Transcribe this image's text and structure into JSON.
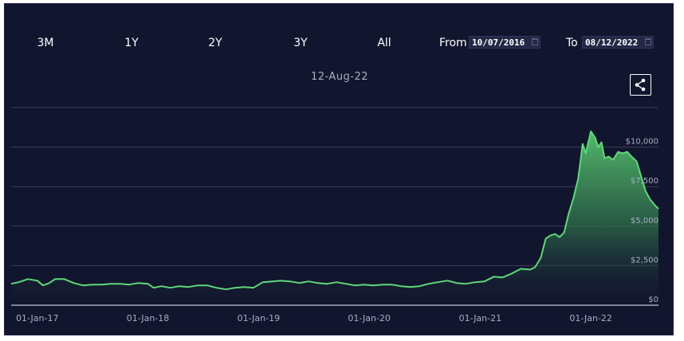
{
  "toolbar": {
    "range_buttons": [
      "3M",
      "1Y",
      "2Y",
      "3Y",
      "All"
    ],
    "from_label": "From",
    "from_value": "10/07/2016",
    "to_label": "To",
    "to_value": "08/12/2022"
  },
  "hover_date": "12-Aug-22",
  "share_icon": "share-icon",
  "colors": {
    "background": "#12152e",
    "line": "#5fd87a",
    "fill_top": "#57c46f",
    "grid": "#3a3f5c",
    "text": "#a8adc4"
  },
  "chart_data": {
    "type": "area",
    "title": "",
    "xlabel": "",
    "ylabel": "",
    "ylim": [
      0,
      12500
    ],
    "y_ticks": [
      {
        "value": 0,
        "label": "$0"
      },
      {
        "value": 2500,
        "label": "$2,500"
      },
      {
        "value": 5000,
        "label": "$5,000"
      },
      {
        "value": 7500,
        "label": "$7,500"
      },
      {
        "value": 10000,
        "label": "$10,000"
      }
    ],
    "x_ticks": [
      {
        "date": "2017-01-01",
        "label": "01-Jan-17"
      },
      {
        "date": "2018-01-01",
        "label": "01-Jan-18"
      },
      {
        "date": "2019-01-01",
        "label": "01-Jan-19"
      },
      {
        "date": "2020-01-01",
        "label": "01-Jan-20"
      },
      {
        "date": "2021-01-01",
        "label": "01-Jan-21"
      },
      {
        "date": "2022-01-01",
        "label": "01-Jan-22"
      }
    ],
    "xlim": [
      "2016-10-07",
      "2022-08-12"
    ],
    "grid": true,
    "legend": "none",
    "series": [
      {
        "points": [
          [
            "2016-10-07",
            1350
          ],
          [
            "2016-11-01",
            1450
          ],
          [
            "2016-12-01",
            1650
          ],
          [
            "2017-01-01",
            1550
          ],
          [
            "2017-01-20",
            1250
          ],
          [
            "2017-02-10",
            1400
          ],
          [
            "2017-03-01",
            1650
          ],
          [
            "2017-04-01",
            1650
          ],
          [
            "2017-05-01",
            1400
          ],
          [
            "2017-06-01",
            1250
          ],
          [
            "2017-07-01",
            1300
          ],
          [
            "2017-08-01",
            1300
          ],
          [
            "2017-09-01",
            1350
          ],
          [
            "2017-10-01",
            1350
          ],
          [
            "2017-11-01",
            1300
          ],
          [
            "2017-12-01",
            1400
          ],
          [
            "2018-01-01",
            1350
          ],
          [
            "2018-01-20",
            1100
          ],
          [
            "2018-02-15",
            1200
          ],
          [
            "2018-03-15",
            1100
          ],
          [
            "2018-04-15",
            1200
          ],
          [
            "2018-05-15",
            1150
          ],
          [
            "2018-06-15",
            1250
          ],
          [
            "2018-07-15",
            1250
          ],
          [
            "2018-08-15",
            1100
          ],
          [
            "2018-09-15",
            1000
          ],
          [
            "2018-10-15",
            1100
          ],
          [
            "2018-11-15",
            1150
          ],
          [
            "2018-12-15",
            1100
          ],
          [
            "2019-01-15",
            1450
          ],
          [
            "2019-02-15",
            1500
          ],
          [
            "2019-03-15",
            1550
          ],
          [
            "2019-04-15",
            1500
          ],
          [
            "2019-05-15",
            1400
          ],
          [
            "2019-06-15",
            1500
          ],
          [
            "2019-07-15",
            1400
          ],
          [
            "2019-08-15",
            1350
          ],
          [
            "2019-09-15",
            1450
          ],
          [
            "2019-10-15",
            1350
          ],
          [
            "2019-11-15",
            1250
          ],
          [
            "2019-12-15",
            1300
          ],
          [
            "2020-01-15",
            1250
          ],
          [
            "2020-02-15",
            1300
          ],
          [
            "2020-03-15",
            1300
          ],
          [
            "2020-04-15",
            1200
          ],
          [
            "2020-05-15",
            1150
          ],
          [
            "2020-06-15",
            1200
          ],
          [
            "2020-07-15",
            1350
          ],
          [
            "2020-08-15",
            1450
          ],
          [
            "2020-09-15",
            1550
          ],
          [
            "2020-10-15",
            1400
          ],
          [
            "2020-11-15",
            1350
          ],
          [
            "2020-12-15",
            1450
          ],
          [
            "2021-01-15",
            1500
          ],
          [
            "2021-02-15",
            1800
          ],
          [
            "2021-03-15",
            1750
          ],
          [
            "2021-04-15",
            2000
          ],
          [
            "2021-05-15",
            2300
          ],
          [
            "2021-06-15",
            2250
          ],
          [
            "2021-07-01",
            2400
          ],
          [
            "2021-07-20",
            3000
          ],
          [
            "2021-08-05",
            4200
          ],
          [
            "2021-08-20",
            4400
          ],
          [
            "2021-09-05",
            4500
          ],
          [
            "2021-09-20",
            4300
          ],
          [
            "2021-10-05",
            4600
          ],
          [
            "2021-10-20",
            5800
          ],
          [
            "2021-11-05",
            6800
          ],
          [
            "2021-11-20",
            8000
          ],
          [
            "2021-12-05",
            10200
          ],
          [
            "2021-12-15",
            9600
          ],
          [
            "2022-01-01",
            11000
          ],
          [
            "2022-01-15",
            10600
          ],
          [
            "2022-01-25",
            10000
          ],
          [
            "2022-02-05",
            10300
          ],
          [
            "2022-02-15",
            9300
          ],
          [
            "2022-03-01",
            9400
          ],
          [
            "2022-03-15",
            9200
          ],
          [
            "2022-04-01",
            9700
          ],
          [
            "2022-04-15",
            9600
          ],
          [
            "2022-05-01",
            9700
          ],
          [
            "2022-05-15",
            9400
          ],
          [
            "2022-06-01",
            9100
          ],
          [
            "2022-06-15",
            8200
          ],
          [
            "2022-07-01",
            7200
          ],
          [
            "2022-07-15",
            6700
          ],
          [
            "2022-08-01",
            6300
          ],
          [
            "2022-08-12",
            6100
          ]
        ]
      }
    ]
  }
}
